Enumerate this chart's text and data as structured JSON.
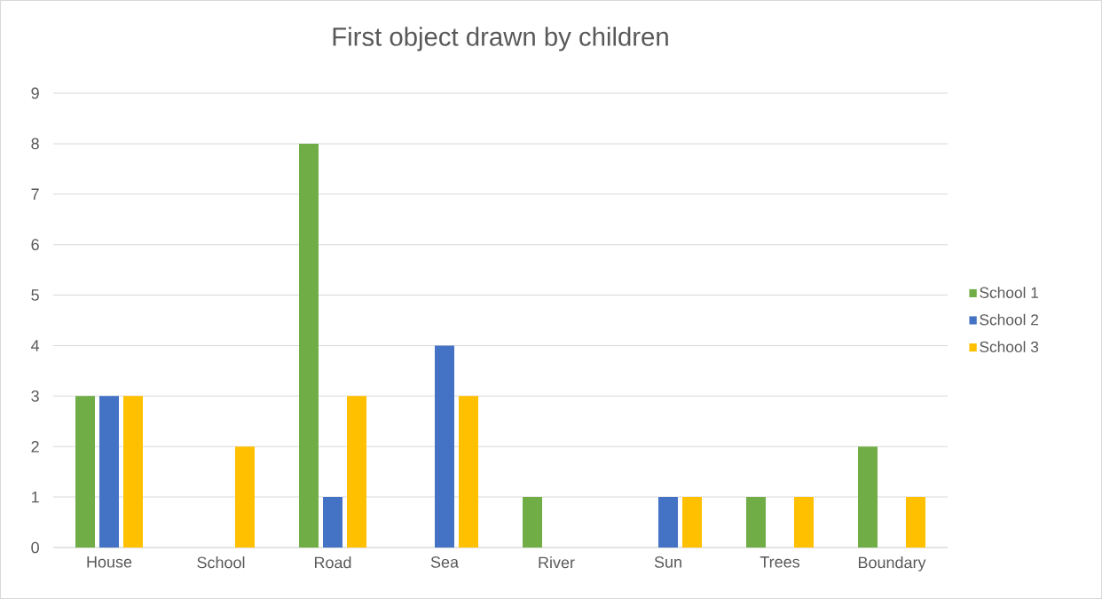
{
  "chart_data": {
    "type": "bar",
    "title": "First object drawn by children",
    "categories": [
      "House",
      "School",
      "Road",
      "Sea",
      "River",
      "Sun",
      "Trees",
      "Boundary"
    ],
    "series": [
      {
        "name": "School 1",
        "color": "#70ad47",
        "values": [
          3,
          0,
          8,
          0,
          1,
          0,
          1,
          2
        ]
      },
      {
        "name": "School 2",
        "color": "#4472c4",
        "values": [
          3,
          0,
          1,
          4,
          0,
          1,
          0,
          0
        ]
      },
      {
        "name": "School 3",
        "color": "#ffc000",
        "values": [
          3,
          2,
          3,
          3,
          0,
          1,
          1,
          1
        ]
      }
    ],
    "ylim": [
      0,
      9
    ],
    "yticks": [
      0,
      1,
      2,
      3,
      4,
      5,
      6,
      7,
      8,
      9
    ],
    "grid": "y",
    "legend": "right"
  }
}
